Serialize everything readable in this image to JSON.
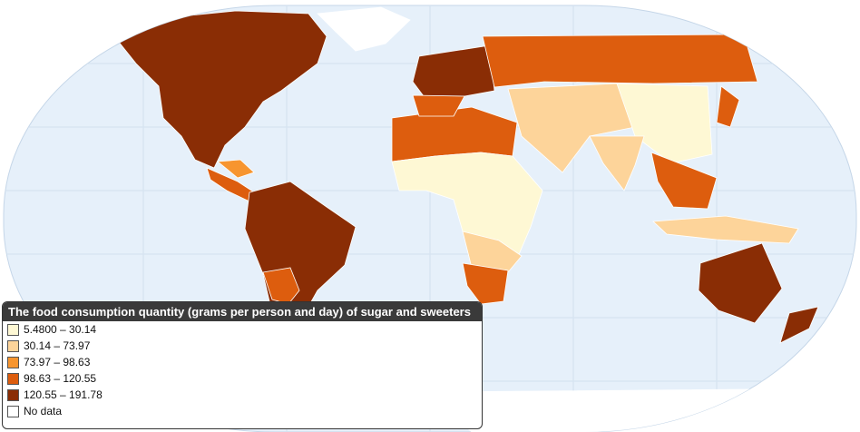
{
  "legend": {
    "title": "The food consumption quantity (grams per person and day) of sugar and sweeters",
    "items": [
      {
        "label": "5.4800 – 30.14",
        "color": "#fef8d4"
      },
      {
        "label": "30.14 – 73.97",
        "color": "#fdd49a"
      },
      {
        "label": "73.97 – 98.63",
        "color": "#f7952f"
      },
      {
        "label": "98.63 – 120.55",
        "color": "#dd5d0e"
      },
      {
        "label": "120.55 – 191.78",
        "color": "#8a2d05"
      },
      {
        "label": "No data",
        "color": "#ffffff"
      }
    ]
  }
}
